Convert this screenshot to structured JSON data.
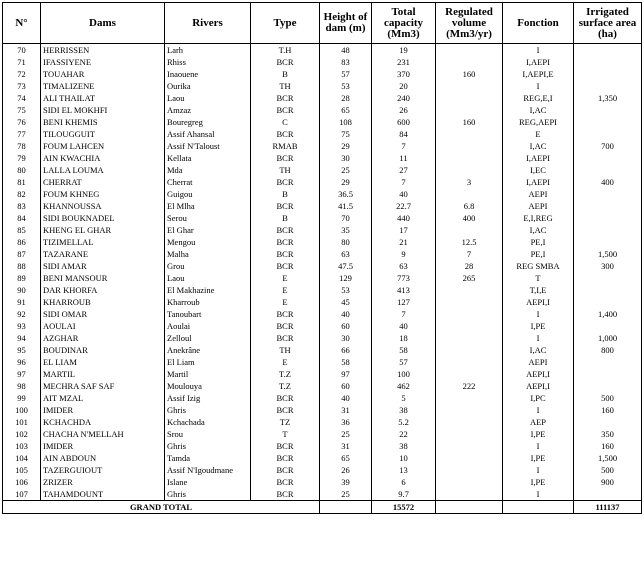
{
  "table": {
    "headers": [
      "N°",
      "Dams",
      "Rivers",
      "Type",
      "Height of dam (m)",
      "Total capacity (Mm3)",
      "Regulated volume (Mm3/yr)",
      "Fonction",
      "Irrigated surface area (ha)"
    ],
    "rows": [
      [
        "70",
        "HERRISSEN",
        "Larh",
        "T.H",
        "48",
        "19",
        null,
        "I",
        null
      ],
      [
        "71",
        "IFASSIYENE",
        "Rhiss",
        "BCR",
        "83",
        "231",
        null,
        "I,AEPI",
        null
      ],
      [
        "72",
        "TOUAHAR",
        "Inaouene",
        "B",
        "57",
        "370",
        "160",
        "I,AEPI,E",
        null
      ],
      [
        "73",
        "TIMALIZENE",
        "Ourika",
        "TH",
        "53",
        "20",
        null,
        "I",
        null
      ],
      [
        "74",
        "ALI THAILAT",
        "Laou",
        "BCR",
        "28",
        "240",
        null,
        "REG,E,I",
        "1,350"
      ],
      [
        "75",
        "SIDI EL MOKHFI",
        "Amzaz",
        "BCR",
        "65",
        "26",
        null,
        "I,AC",
        null
      ],
      [
        "76",
        "BENI KHEMIS",
        "Bouregreg",
        "C",
        "108",
        "600",
        "160",
        "REG,AEPI",
        null
      ],
      [
        "77",
        "TILOUGGUIT",
        "Assif Ahansal",
        "BCR",
        "75",
        "84",
        null,
        "E",
        null
      ],
      [
        "78",
        "FOUM LAHCEN",
        "Assif N'Taloust",
        "RMAB",
        "29",
        "7",
        null,
        "I,AC",
        "700"
      ],
      [
        "79",
        "AIN KWACHIA",
        "Kellata",
        "BCR",
        "30",
        "11",
        null,
        "I,AEPI",
        null
      ],
      [
        "80",
        "LALLA LOUMA",
        "Mda",
        "TH",
        "25",
        "27",
        null,
        "I,EC",
        null
      ],
      [
        "81",
        "CHERRAT",
        "Cherrat",
        "BCR",
        "29",
        "7",
        "3",
        "I,AEPI",
        "400"
      ],
      [
        "82",
        "FOUM KHNEG",
        "Guigou",
        "B",
        "36.5",
        "40",
        null,
        "AEPI",
        null
      ],
      [
        "83",
        "KHANNOUSSA",
        "El Mlha",
        "BCR",
        "41.5",
        "22.7",
        "6.8",
        "AEPI",
        null
      ],
      [
        "84",
        "SIDI BOUKNADEL",
        "Serou",
        "B",
        "70",
        "440",
        "400",
        "E,I,REG",
        null
      ],
      [
        "85",
        "KHENG EL GHAR",
        "El Ghar",
        "BCR",
        "35",
        "17",
        null,
        "I,AC",
        null
      ],
      [
        "86",
        "TIZIMELLAL",
        "Mengou",
        "BCR",
        "80",
        "21",
        "12.5",
        "PE,I",
        null
      ],
      [
        "87",
        "TAZARANE",
        "Malha",
        "BCR",
        "63",
        "9",
        "7",
        "PE,I",
        "1,500"
      ],
      [
        "88",
        "SIDI AMAR",
        "Grou",
        "BCR",
        "47.5",
        "63",
        "28",
        "REG SMBA",
        "300"
      ],
      [
        "89",
        "BENI MANSOUR",
        "Laou",
        "E",
        "129",
        "773",
        "265",
        "T",
        null
      ],
      [
        "90",
        "DAR KHORFA",
        "El Makhazine",
        "E",
        "53",
        "413",
        null,
        "T,I,E",
        null
      ],
      [
        "91",
        "KHARROUB",
        "Kharroub",
        "E",
        "45",
        "127",
        null,
        "AEPI,I",
        null
      ],
      [
        "92",
        "SIDI OMAR",
        "Tanoubart",
        "BCR",
        "40",
        "7",
        null,
        "I",
        "1,400"
      ],
      [
        "93",
        "AOULAI",
        "Aoulai",
        "BCR",
        "60",
        "40",
        null,
        "I,PE",
        null
      ],
      [
        "94",
        "AZGHAR",
        "Zelloul",
        "BCR",
        "30",
        "18",
        null,
        "I",
        "1,000"
      ],
      [
        "95",
        "BOUDINAR",
        "Anekrâne",
        "TH",
        "66",
        "58",
        null,
        "I,AC",
        "800"
      ],
      [
        "96",
        "EL LIAM",
        "El Liam",
        "E",
        "58",
        "57",
        null,
        "AEPI",
        null
      ],
      [
        "97",
        "MARTIL",
        "Martil",
        "T.Z",
        "97",
        "100",
        null,
        "AEPI,I",
        null
      ],
      [
        "98",
        "MECHRA SAF SAF",
        "Moulouya",
        "T.Z",
        "60",
        "462",
        "222",
        "AEPI,I",
        null
      ],
      [
        "99",
        "AIT MZAL",
        "Assif Izig",
        "BCR",
        "40",
        "5",
        null,
        "I,PC",
        "500"
      ],
      [
        "100",
        "IMIDER",
        "Ghris",
        "BCR",
        "31",
        "38",
        null,
        "I",
        "160"
      ],
      [
        "101",
        "KCHACHDA",
        "Kchachada",
        "TZ",
        "36",
        "5.2",
        null,
        "AEP",
        null
      ],
      [
        "102",
        "CHACHA N'MELLAH",
        "Srou",
        "T",
        "25",
        "22",
        null,
        "I,PE",
        "350"
      ],
      [
        "103",
        "IMIDER",
        "Ghris",
        "BCR",
        "31",
        "38",
        null,
        "I",
        "160"
      ],
      [
        "104",
        "AIN ABDOUN",
        "Tamda",
        "BCR",
        "65",
        "10",
        null,
        "I,PE",
        "1,500"
      ],
      [
        "105",
        "TAZERGUIOUT",
        "Assif N'Igoudmane",
        "BCR",
        "26",
        "13",
        null,
        "I",
        "500"
      ],
      [
        "106",
        "ZRIZER",
        "Islane",
        "BCR",
        "39",
        "6",
        null,
        "I,PE",
        "900"
      ],
      [
        "107",
        "TAHAMDOUNT",
        "Ghris",
        "BCR",
        "25",
        "9.7",
        null,
        "I",
        null
      ]
    ],
    "total": {
      "label": "GRAND TOTAL",
      "capacity": "15572",
      "irrigated": "111137"
    }
  }
}
